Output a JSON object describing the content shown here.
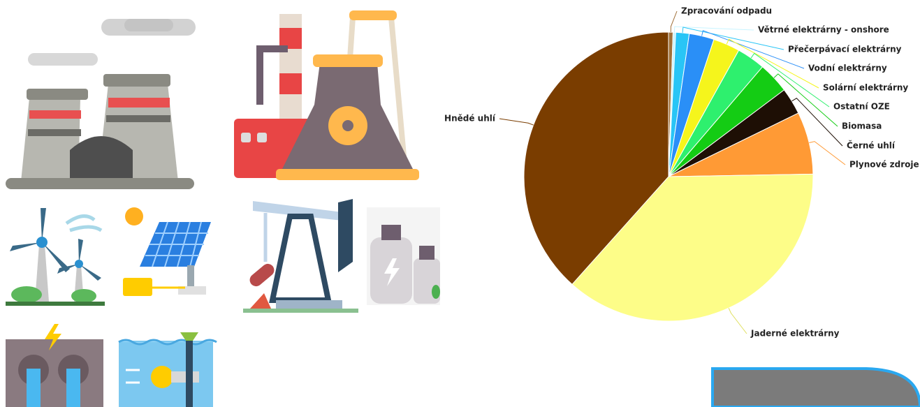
{
  "chart_data": {
    "type": "pie",
    "categories": [
      "Zpracování odpadu",
      "Větrné elektrárny - onshore",
      "Přečerpávací elektrárny",
      "Vodní elektrárny",
      "Solární elektrárny",
      "Ostatní OZE",
      "Biomasa",
      "Černé uhlí",
      "Plynové zdroje",
      "Jaderné elektrárny",
      "Hnědé uhlí"
    ],
    "values": [
      0.5,
      0.3,
      1.5,
      2.8,
      3,
      3.2,
      3.5,
      3,
      7,
      37,
      38.5
    ],
    "colors": [
      "#a0703a",
      "#c8f4ff",
      "#29c5f6",
      "#2a8ff7",
      "#f5f51c",
      "#2ef06e",
      "#14cc14",
      "#1e0f05",
      "#ff9a35",
      "#fdfd88",
      "#7a3d00"
    ]
  }
}
